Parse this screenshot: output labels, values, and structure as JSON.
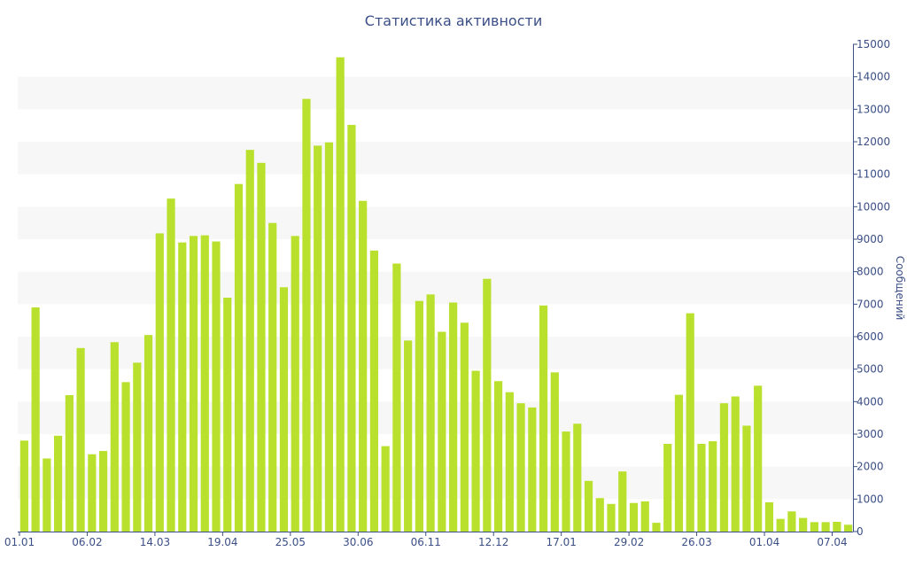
{
  "chart_data": {
    "type": "bar",
    "title": "Статистика активности",
    "xlabel": "",
    "ylabel": "Сообщений",
    "ylim": [
      0,
      15000
    ],
    "yticks": [
      0,
      1000,
      2000,
      3000,
      4000,
      5000,
      6000,
      7000,
      8000,
      9000,
      10000,
      11000,
      12000,
      13000,
      14000,
      15000
    ],
    "x_tick_labels": [
      {
        "index": 0,
        "label": "01.01"
      },
      {
        "index": 6,
        "label": "06.02"
      },
      {
        "index": 12,
        "label": "14.03"
      },
      {
        "index": 18,
        "label": "19.04"
      },
      {
        "index": 24,
        "label": "25.05"
      },
      {
        "index": 30,
        "label": "30.06"
      },
      {
        "index": 36,
        "label": "06.11"
      },
      {
        "index": 42,
        "label": "12.12"
      },
      {
        "index": 48,
        "label": "17.01"
      },
      {
        "index": 54,
        "label": "29.02"
      },
      {
        "index": 60,
        "label": "26.03"
      },
      {
        "index": 66,
        "label": "01.04"
      },
      {
        "index": 72,
        "label": "07.04"
      }
    ],
    "values": [
      2800,
      6900,
      2250,
      2950,
      4200,
      5650,
      2380,
      2480,
      5830,
      4600,
      5200,
      6050,
      9180,
      10250,
      8900,
      9100,
      9120,
      8930,
      7200,
      10700,
      11750,
      11350,
      9500,
      7520,
      9100,
      13320,
      11880,
      11980,
      14600,
      12520,
      10180,
      8650,
      2630,
      8250,
      5880,
      7100,
      7300,
      6150,
      7050,
      6430,
      4950,
      7780,
      4630,
      4290,
      3950,
      3820,
      6960,
      4900,
      3080,
      3320,
      1560,
      1030,
      850,
      1850,
      880,
      930,
      270,
      2700,
      4210,
      6720,
      2700,
      2780,
      3950,
      4160,
      3260,
      4490,
      900,
      390,
      620,
      420,
      290,
      290,
      300,
      210
    ],
    "bar_color": "#b8e02c",
    "band_color": "#f7f7f7",
    "axis_color": "#3b4f86",
    "grid": "alternating-bands",
    "y_axis_side": "right"
  }
}
